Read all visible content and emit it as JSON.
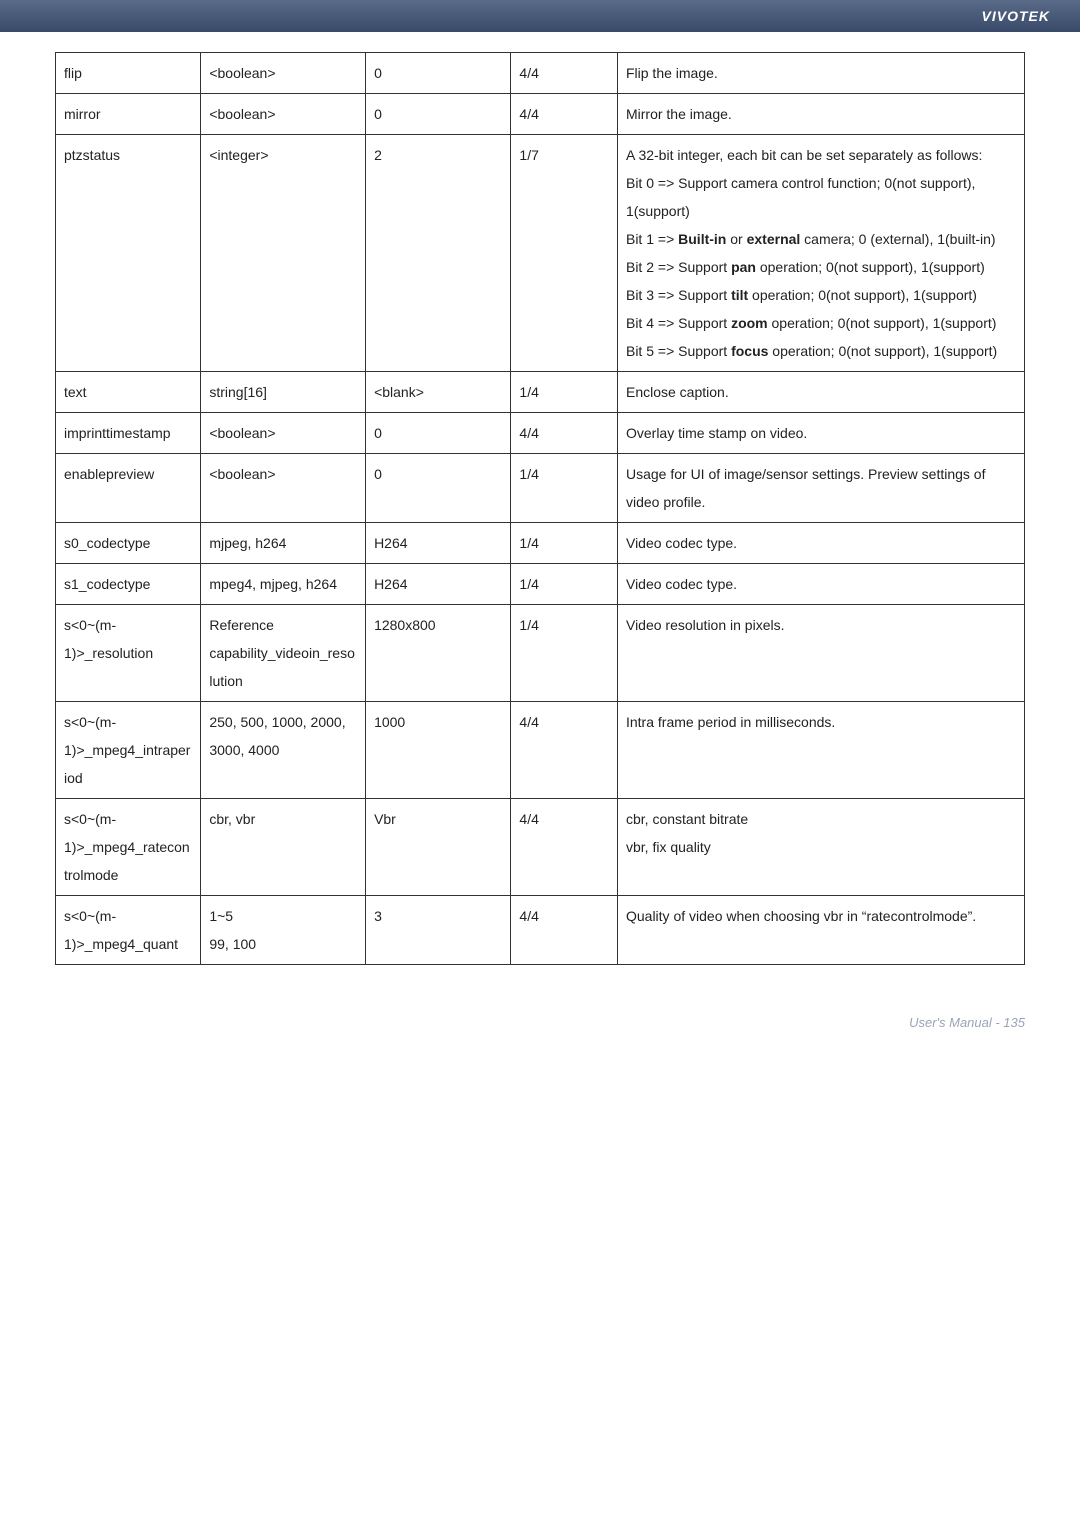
{
  "header": {
    "brand": "VIVOTEK"
  },
  "footer": {
    "label": "User's Manual - 135"
  },
  "table": {
    "rows": [
      {
        "name": "flip",
        "value": "<boolean>",
        "default": "0",
        "security": "4/4",
        "desc": "Flip the image."
      },
      {
        "name": "mirror",
        "value": "<boolean>",
        "default": "0",
        "security": "4/4",
        "desc": "Mirror the image."
      },
      {
        "name": "ptzstatus",
        "value": "<integer>",
        "default": "2",
        "security": "1/7",
        "desc_html": "A 32-bit integer, each bit can be set separately as follows:<br>Bit 0 => Support camera control function; 0(not support), 1(support)<br>Bit 1 => <b>Built-in</b> or <b>external</b> camera; 0 (external), 1(built-in)<br>Bit 2 => Support <b>pan</b> operation; 0(not support), 1(support)<br>Bit 3 => Support <b>tilt</b> operation; 0(not support), 1(support)<br>Bit 4 => Support <b>zoom</b> operation; 0(not support), 1(support)<br>Bit 5 => Support <b>focus</b> operation; 0(not support), 1(support)"
      },
      {
        "name": "text",
        "value": "string[16]",
        "default": "<blank>",
        "security": "1/4",
        "desc": "Enclose caption."
      },
      {
        "name": "imprinttimestamp",
        "value": "<boolean>",
        "default": "0",
        "security": "4/4",
        "desc": "Overlay time stamp on video."
      },
      {
        "name": "enablepreview",
        "value": "<boolean>",
        "default": "0",
        "security": "1/4",
        "desc": "Usage for UI of image/sensor settings. Preview settings of video profile."
      },
      {
        "name": "s0_codectype",
        "value": "mjpeg, h264",
        "default": "H264",
        "security": "1/4",
        "desc": "Video codec type."
      },
      {
        "name": "s1_codectype",
        "value": "mpeg4, mjpeg, h264",
        "default": "H264",
        "security": "1/4",
        "desc": "Video codec type."
      },
      {
        "name": "s<0~(m-1)>_resolution",
        "value": "Reference capability_videoin_resolution",
        "default": "1280x800",
        "security": "1/4",
        "desc": "Video resolution in pixels."
      },
      {
        "name": "s<0~(m-1)>_mpeg4_intraperiod",
        "value": "250, 500, 1000, 2000, 3000, 4000",
        "default": "1000",
        "security": "4/4",
        "desc": "Intra frame period in milliseconds."
      },
      {
        "name": "s<0~(m-1)>_mpeg4_ratecontrolmode",
        "value": "cbr, vbr",
        "default": "Vbr",
        "security": "4/4",
        "desc_html": "cbr, constant bitrate<br>vbr, fix quality"
      },
      {
        "name": "s<0~(m-1)>_mpeg4_quant",
        "value": "1~5\n99, 100",
        "default": "3",
        "security": "4/4",
        "desc": "Quality of video when choosing vbr in “ratecontrolmode”."
      }
    ]
  }
}
